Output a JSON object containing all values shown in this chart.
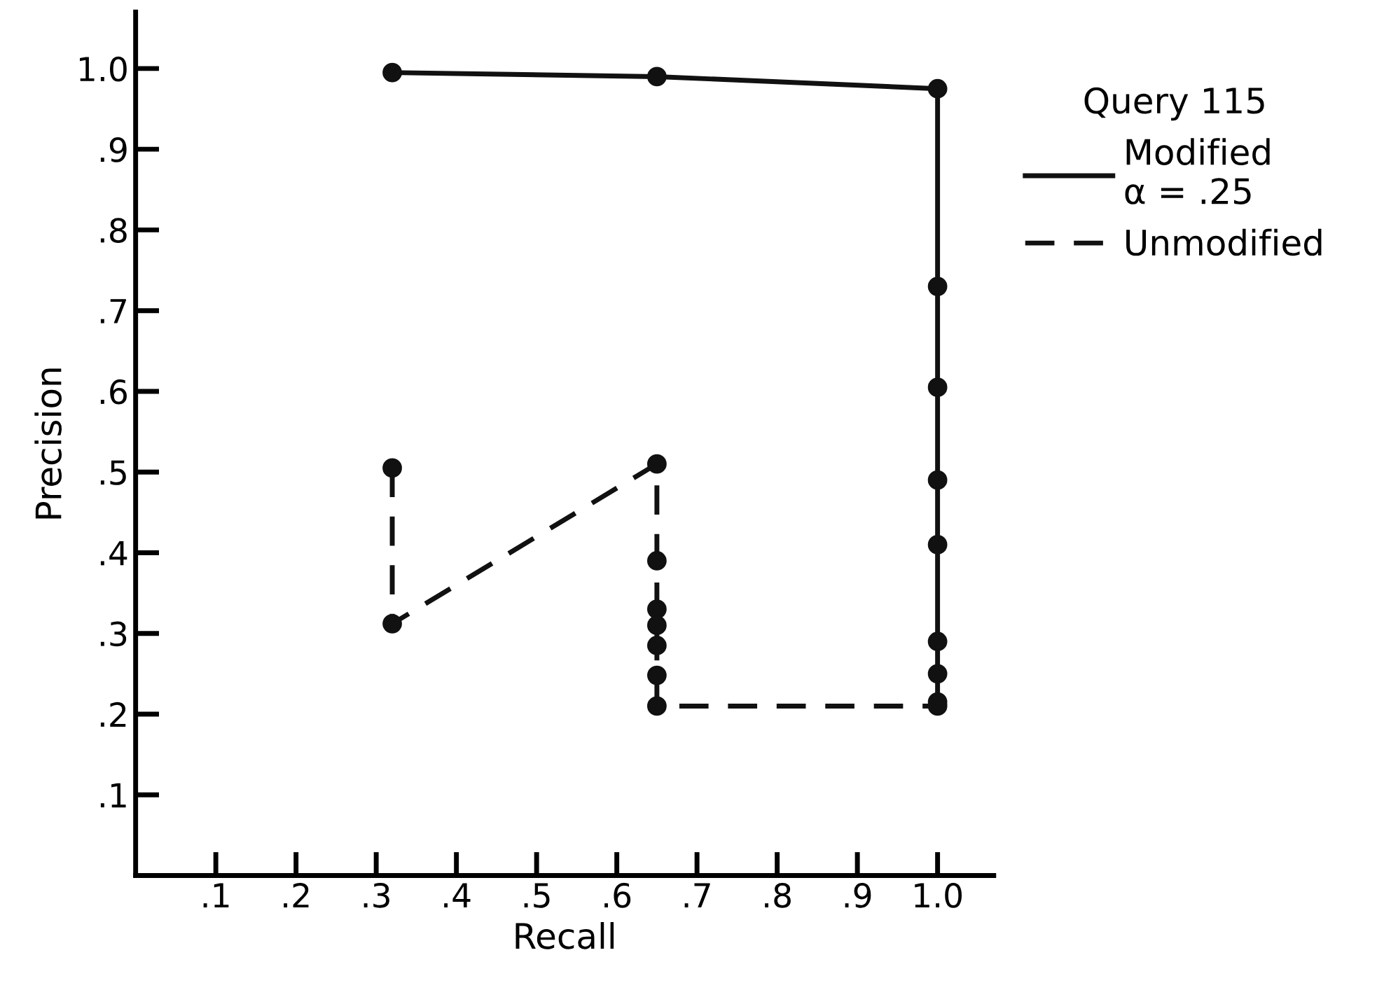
{
  "chart_data": {
    "type": "line",
    "xlabel": "Recall",
    "ylabel": "Precision",
    "legend_title": "Query 115",
    "xlim": [
      0,
      1.07
    ],
    "ylim": [
      0,
      1.07
    ],
    "xticks": [
      {
        "value": 0.1,
        "label": ".1"
      },
      {
        "value": 0.2,
        "label": ".2"
      },
      {
        "value": 0.3,
        "label": ".3"
      },
      {
        "value": 0.4,
        "label": ".4"
      },
      {
        "value": 0.5,
        "label": ".5"
      },
      {
        "value": 0.6,
        "label": ".6"
      },
      {
        "value": 0.7,
        "label": ".7"
      },
      {
        "value": 0.8,
        "label": ".8"
      },
      {
        "value": 0.9,
        "label": ".9"
      },
      {
        "value": 1.0,
        "label": "1.0"
      }
    ],
    "yticks": [
      {
        "value": 0.1,
        "label": ".1"
      },
      {
        "value": 0.2,
        "label": ".2"
      },
      {
        "value": 0.3,
        "label": ".3"
      },
      {
        "value": 0.4,
        "label": ".4"
      },
      {
        "value": 0.5,
        "label": ".5"
      },
      {
        "value": 0.6,
        "label": ".6"
      },
      {
        "value": 0.7,
        "label": ".7"
      },
      {
        "value": 0.8,
        "label": ".8"
      },
      {
        "value": 0.9,
        "label": ".9"
      },
      {
        "value": 1.0,
        "label": "1.0"
      }
    ],
    "grid": false,
    "legend": "top right",
    "marker": "circle",
    "series": [
      {
        "name": "Modified\nα = .25",
        "color": "#111111",
        "line_style": "solid",
        "x": [
          0.32,
          0.65,
          1.0,
          1.0,
          1.0,
          1.0,
          1.0,
          1.0,
          1.0,
          1.0
        ],
        "values": [
          0.995,
          0.99,
          0.975,
          0.73,
          0.605,
          0.49,
          0.41,
          0.29,
          0.25,
          0.215
        ]
      },
      {
        "name": "Unmodified",
        "color": "#111111",
        "line_style": "dashed",
        "x": [
          0.32,
          0.32,
          0.65,
          0.65,
          0.65,
          0.65,
          0.65,
          0.65,
          0.65,
          1.0
        ],
        "values": [
          0.505,
          0.312,
          0.51,
          0.39,
          0.33,
          0.31,
          0.285,
          0.248,
          0.21,
          0.21
        ]
      }
    ]
  }
}
